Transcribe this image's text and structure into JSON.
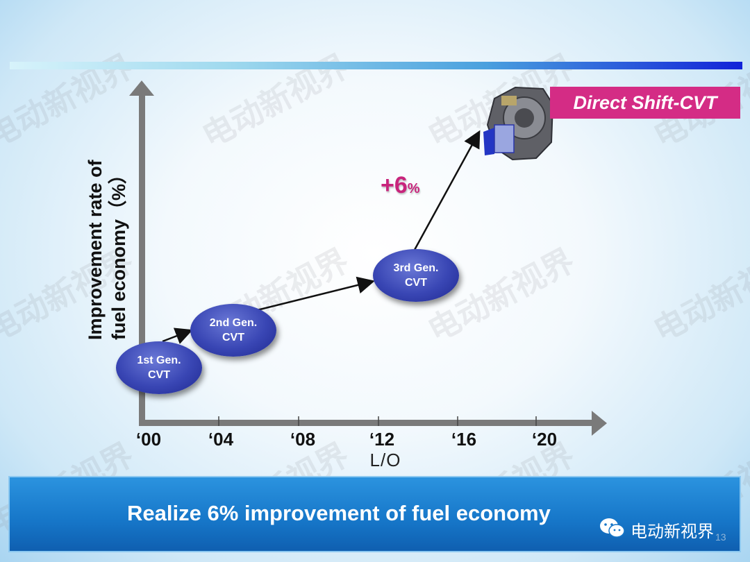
{
  "chart": {
    "y_label_line1": "Improvement rate of",
    "y_label_line2": "fuel economy（%）",
    "x_label": "L/O",
    "x_ticks": [
      "‘00",
      "‘04",
      "‘08",
      "‘12",
      "‘16",
      "‘20"
    ],
    "generations": [
      {
        "label": "1st Gen.\nCVT"
      },
      {
        "label": "2nd Gen.\nCVT"
      },
      {
        "label": "3rd Gen.\nCVT"
      }
    ],
    "plus_value": "+6",
    "plus_unit": "%",
    "product_label": "Direct Shift-CVT"
  },
  "headline": "Realize 6% improvement of fuel economy",
  "watermark_text": "电动新视界",
  "wechat_label": "电动新视界",
  "page_number": "13",
  "colors": {
    "accent_magenta": "#d42c85",
    "ellipse_blue": "#3946b4",
    "bar_blue": "#1676c8"
  }
}
